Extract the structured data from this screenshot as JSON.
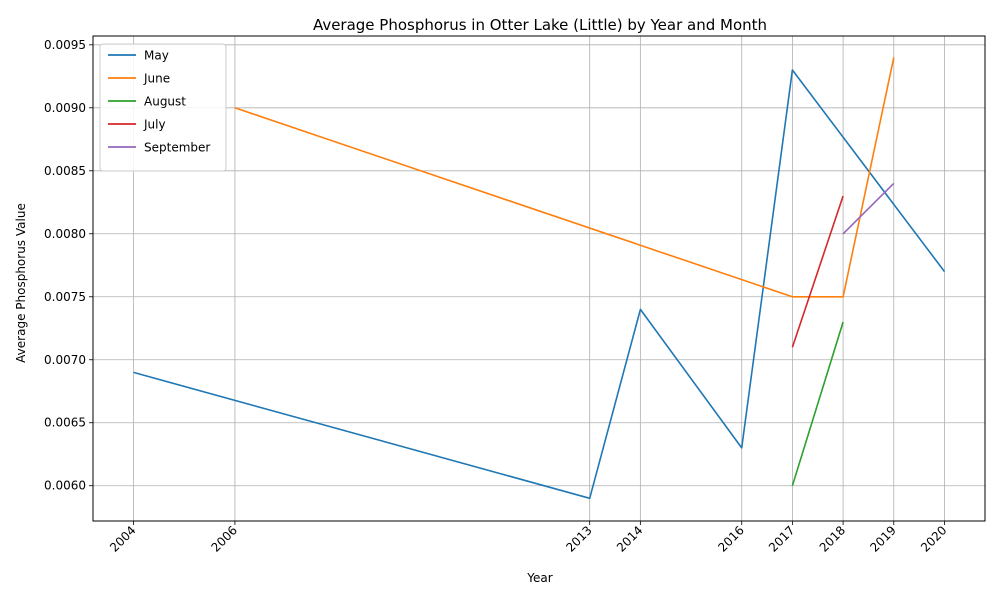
{
  "chart_data": {
    "type": "line",
    "title": "Average Phosphorus in Otter Lake (Little) by Year and Month",
    "xlabel": "Year",
    "ylabel": "Average Phosphorus Value",
    "xlim": [
      2003.2,
      2020.8
    ],
    "ylim": [
      0.00572,
      0.00957
    ],
    "x_ticks": [
      2004,
      2006,
      2013,
      2014,
      2016,
      2017,
      2018,
      2019,
      2020
    ],
    "y_ticks": [
      "0.0060",
      "0.0065",
      "0.0070",
      "0.0075",
      "0.0080",
      "0.0085",
      "0.0090",
      "0.0095"
    ],
    "grid": true,
    "legend_position": "top-left",
    "series": [
      {
        "name": "May",
        "color": "#1f77b4",
        "x": [
          2004,
          2013,
          2014,
          2016,
          2017,
          2020
        ],
        "y": [
          0.0069,
          0.0059,
          0.0074,
          0.0063,
          0.0093,
          0.0077
        ]
      },
      {
        "name": "June",
        "color": "#ff7f0e",
        "x": [
          2006,
          2017,
          2018,
          2019
        ],
        "y": [
          0.009,
          0.0075,
          0.0075,
          0.0094
        ]
      },
      {
        "name": "August",
        "color": "#2ca02c",
        "x": [
          2017,
          2018
        ],
        "y": [
          0.006,
          0.0073
        ]
      },
      {
        "name": "July",
        "color": "#d62728",
        "x": [
          2017,
          2018
        ],
        "y": [
          0.0071,
          0.0083
        ]
      },
      {
        "name": "September",
        "color": "#9467bd",
        "x": [
          2018,
          2019
        ],
        "y": [
          0.008,
          0.0084
        ]
      }
    ]
  }
}
